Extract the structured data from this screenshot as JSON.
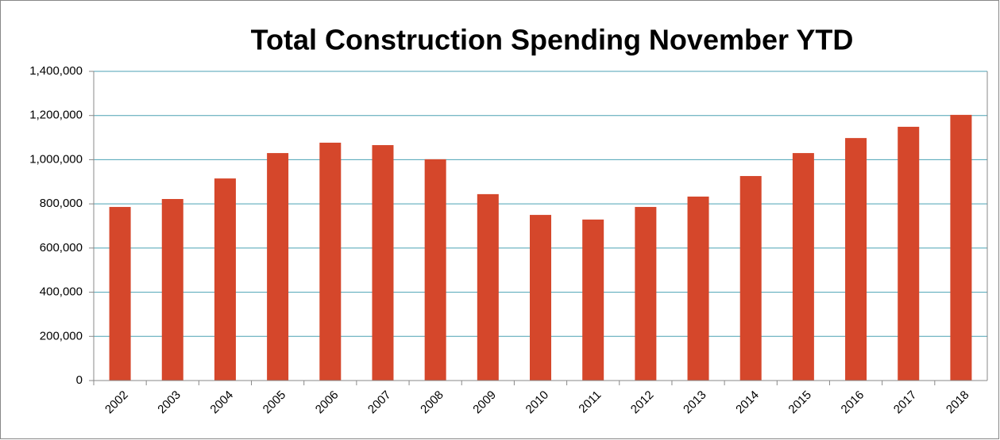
{
  "chart_data": {
    "type": "bar",
    "title": "Total Construction Spending November YTD",
    "categories": [
      "2002",
      "2003",
      "2004",
      "2005",
      "2006",
      "2007",
      "2008",
      "2009",
      "2010",
      "2011",
      "2012",
      "2013",
      "2014",
      "2015",
      "2016",
      "2017",
      "2018"
    ],
    "values": [
      786000,
      822000,
      915000,
      1030000,
      1077000,
      1066000,
      1002000,
      844000,
      750000,
      729000,
      786000,
      833000,
      926000,
      1030000,
      1098000,
      1149000,
      1203000
    ],
    "color": "#d5472b",
    "ylim": [
      0,
      1400000
    ],
    "yticks": [
      0,
      {
        "value": 200000,
        "label": "200,000"
      },
      {
        "value": 400000,
        "label": "400,000"
      },
      {
        "value": 600000,
        "label": "600,000"
      },
      {
        "value": 800000,
        "label": "800,000"
      },
      {
        "value": 1000000,
        "label": "1,000,000"
      },
      {
        "value": 1200000,
        "label": "1,200,000"
      },
      {
        "value": 1400000,
        "label": "1,400,000"
      }
    ],
    "grid": true,
    "grid_color": "#4ba2b4"
  }
}
